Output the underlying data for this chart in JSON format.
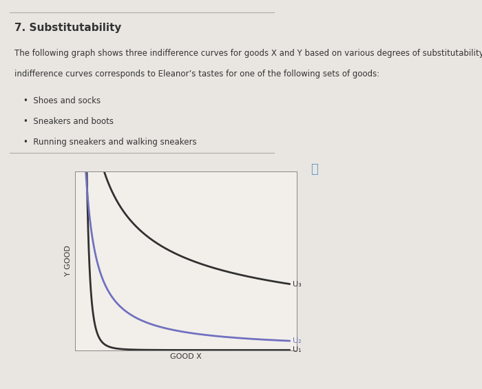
{
  "title": "7. Substitutability",
  "description_line1": "The following graph shows three indifference curves for goods X and Y based on various degrees of substitutability. Suppose that each of the",
  "description_line2": "indifference curves corresponds to Eleanor’s tastes for one of the following sets of goods:",
  "bullet_items": [
    "Shoes and socks",
    "Sneakers and boots",
    "Running sneakers and walking sneakers"
  ],
  "xlabel": "GOOD X",
  "ylabel": "Y GOOD",
  "curve_labels": [
    "U₁",
    "U₂",
    "U₃"
  ],
  "curve_colors": [
    "#303030",
    "#7070c0",
    "#303030"
  ],
  "xlim": [
    0,
    10
  ],
  "ylim": [
    0,
    10
  ],
  "bg_outer": "#e9e6e1",
  "bg_chart_frame": "#eeebe6",
  "bg_plot": "#f2efea",
  "qmark_color": "#6699cc",
  "text_color": "#333333",
  "title_fontsize": 11,
  "body_fontsize": 8.5,
  "axis_label_fontsize": 8,
  "curve_label_fontsize": 8
}
